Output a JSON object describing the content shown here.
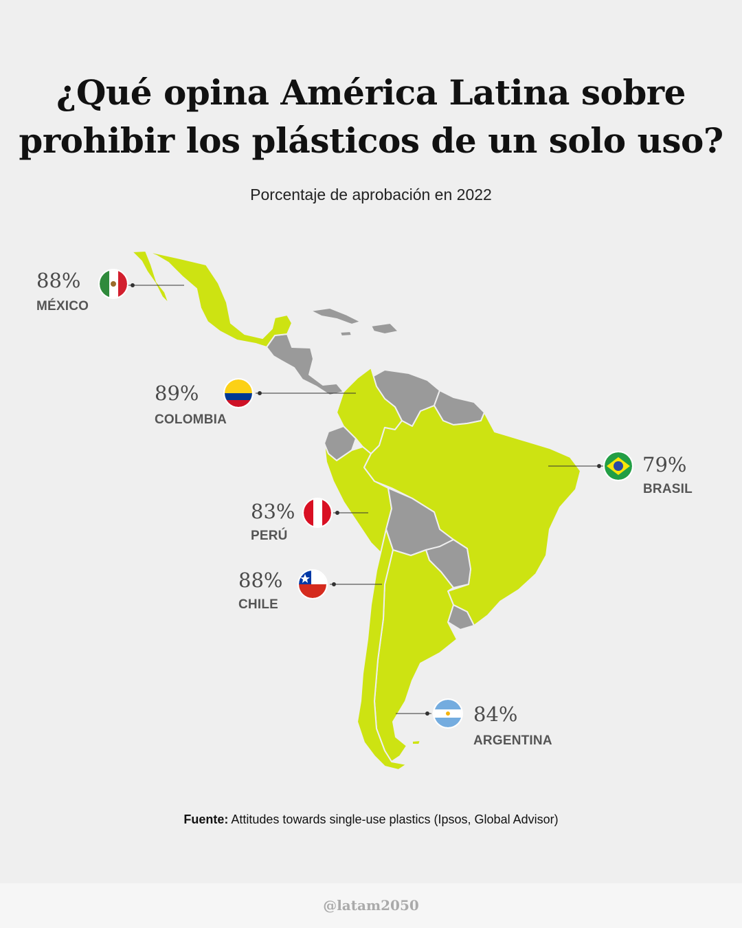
{
  "title_line1": "¿Qué opina América Latina sobre",
  "title_line2": "prohibir los plásticos de un solo uso?",
  "subtitle": "Porcentaje de aprobación en 2022",
  "countries": {
    "mexico": {
      "name": "MÉXICO",
      "value": "88%",
      "flag": "mexico-flag-icon"
    },
    "colombia": {
      "name": "COLOMBIA",
      "value": "89%",
      "flag": "colombia-flag-icon"
    },
    "brasil": {
      "name": "BRASIL",
      "value": "79%",
      "flag": "brazil-flag-icon"
    },
    "peru": {
      "name": "PERÚ",
      "value": "83%",
      "flag": "peru-flag-icon"
    },
    "chile": {
      "name": "CHILE",
      "value": "88%",
      "flag": "chile-flag-icon"
    },
    "argentina": {
      "name": "ARGENTINA",
      "value": "84%",
      "flag": "argentina-flag-icon"
    }
  },
  "source": {
    "label": "Fuente:",
    "text": "Attitudes towards single-use plastics (Ipsos, Global Advisor)"
  },
  "handle": "@latam2050",
  "colors": {
    "highlight": "#cde312",
    "other": "#9a9a9a",
    "background": "#efefef"
  }
}
